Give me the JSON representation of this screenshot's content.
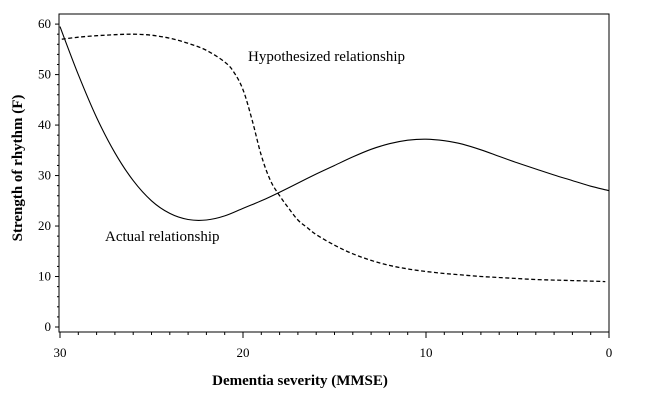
{
  "chart_data": {
    "type": "line",
    "xlabel": "Dementia severity (MMSE)",
    "ylabel": "Strength of rhythm (F)",
    "xlim": [
      30,
      0
    ],
    "ylim": [
      0,
      62
    ],
    "x_reversed": true,
    "xticks": [
      30,
      20,
      10,
      0
    ],
    "yticks": [
      0,
      10,
      20,
      30,
      40,
      50,
      60
    ],
    "grid": false,
    "annotations": [
      "Hypothesized relationship",
      "Actual relationship"
    ],
    "series": [
      {
        "style": "solid",
        "color": "#000000",
        "x": [
          30,
          29,
          28,
          27,
          26,
          25,
          24,
          23,
          22,
          21,
          20,
          19,
          18,
          17,
          16,
          15,
          14,
          13,
          12,
          11,
          10,
          9,
          8,
          7,
          6,
          5,
          4,
          3,
          2,
          1,
          0
        ],
        "y": [
          59.5,
          50,
          41.5,
          34.5,
          29,
          25,
          22.5,
          21.3,
          21.2,
          22,
          23.5,
          25,
          26.7,
          28.5,
          30.3,
          32,
          33.7,
          35.2,
          36.3,
          37,
          37.2,
          36.9,
          36.2,
          35.1,
          33.8,
          32.5,
          31.3,
          30.1,
          29,
          27.9,
          27
        ]
      },
      {
        "style": "dashed",
        "color": "#000000",
        "x": [
          29.9,
          29,
          28,
          27,
          26,
          25,
          24,
          23,
          22,
          21,
          20.5,
          20,
          19.5,
          19,
          18.5,
          18,
          17.5,
          17,
          16.5,
          16,
          15,
          14,
          13,
          12,
          11,
          10,
          9,
          8,
          7,
          6,
          5,
          4,
          3,
          2,
          1,
          0.2
        ],
        "y": [
          57,
          57.4,
          57.7,
          57.9,
          58,
          57.8,
          57.2,
          56.2,
          54.8,
          52.5,
          50.5,
          47,
          41,
          34,
          29,
          26,
          23.5,
          21.2,
          19.7,
          18.3,
          16.2,
          14.5,
          13.2,
          12.2,
          11.5,
          11,
          10.6,
          10.3,
          10,
          9.8,
          9.6,
          9.4,
          9.3,
          9.2,
          9.1,
          9
        ]
      }
    ]
  }
}
